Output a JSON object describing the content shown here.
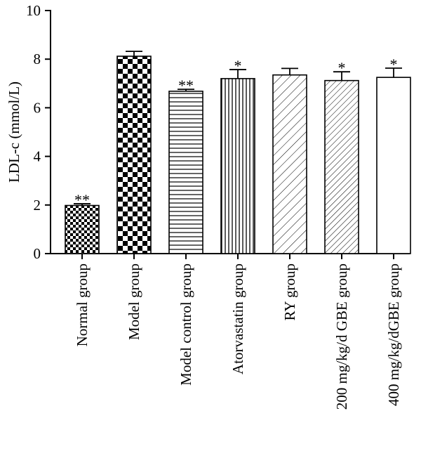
{
  "chart_data": {
    "type": "bar",
    "ylabel": "LDL-c (mmol/L)",
    "ylim": [
      0,
      10
    ],
    "yticks": [
      0,
      2,
      4,
      6,
      8,
      10
    ],
    "grid": false,
    "categories": [
      "Normal group",
      "Model group",
      "Model control group",
      "Atorvastatin group",
      "RY group",
      "200 mg/kg/d GBE group",
      "400 mg/kg/dGBE group"
    ],
    "values": [
      1.98,
      8.12,
      6.68,
      7.2,
      7.35,
      7.12,
      7.25
    ],
    "errors": [
      0.07,
      0.2,
      0.08,
      0.37,
      0.27,
      0.36,
      0.38
    ],
    "significance": [
      "**",
      "",
      "**",
      "*",
      "",
      "*",
      "*"
    ],
    "patterns": [
      "fine-checker",
      "coarse-checker",
      "horizontal-lines",
      "vertical-lines",
      "diagonal-lines",
      "dense-diagonal-lines",
      "none"
    ]
  }
}
